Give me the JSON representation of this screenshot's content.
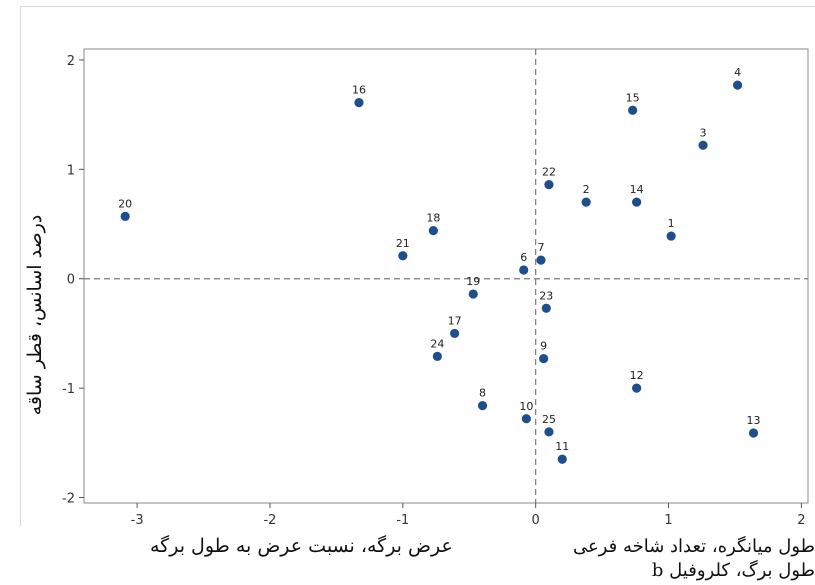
{
  "chart_data": {
    "type": "scatter",
    "title": "",
    "xlabel_left": "عرض برگه، نسبت عرض به طول برگه",
    "xlabel_right": "طول میانگره، تعداد شاخه فرعی طول برگ، کلروفیل b",
    "ylabel": "درصد اسانس، قطر ساقه",
    "xlim": [
      -3.4,
      2.05
    ],
    "ylim": [
      -2.05,
      2.1
    ],
    "x_ticks": [
      -3,
      -2,
      -1,
      0,
      1,
      2
    ],
    "y_ticks": [
      -2,
      -1,
      0,
      1,
      2
    ],
    "reference_lines": {
      "x": 0,
      "y": 0,
      "style": "dashed"
    },
    "grid": false,
    "marker_color": "#1f4e8c",
    "points": [
      {
        "label": "1",
        "x": 1.02,
        "y": 0.39
      },
      {
        "label": "2",
        "x": 0.38,
        "y": 0.7
      },
      {
        "label": "3",
        "x": 1.26,
        "y": 1.22
      },
      {
        "label": "4",
        "x": 1.52,
        "y": 1.77
      },
      {
        "label": "6",
        "x": -0.09,
        "y": 0.08
      },
      {
        "label": "7",
        "x": 0.04,
        "y": 0.17
      },
      {
        "label": "8",
        "x": -0.4,
        "y": -1.16
      },
      {
        "label": "9",
        "x": 0.06,
        "y": -0.73
      },
      {
        "label": "10",
        "x": -0.07,
        "y": -1.28
      },
      {
        "label": "11",
        "x": 0.2,
        "y": -1.65
      },
      {
        "label": "12",
        "x": 0.76,
        "y": -1.0
      },
      {
        "label": "13",
        "x": 1.64,
        "y": -1.41
      },
      {
        "label": "14",
        "x": 0.76,
        "y": 0.7
      },
      {
        "label": "15",
        "x": 0.73,
        "y": 1.54
      },
      {
        "label": "16",
        "x": -1.33,
        "y": 1.61
      },
      {
        "label": "17",
        "x": -0.61,
        "y": -0.5
      },
      {
        "label": "18",
        "x": -0.77,
        "y": 0.44
      },
      {
        "label": "19",
        "x": -0.47,
        "y": -0.14
      },
      {
        "label": "20",
        "x": -3.09,
        "y": 0.57
      },
      {
        "label": "21",
        "x": -1.0,
        "y": 0.21
      },
      {
        "label": "22",
        "x": 0.1,
        "y": 0.86
      },
      {
        "label": "23",
        "x": 0.08,
        "y": -0.27
      },
      {
        "label": "24",
        "x": -0.74,
        "y": -0.71
      },
      {
        "label": "25",
        "x": 0.1,
        "y": -1.4
      }
    ]
  }
}
